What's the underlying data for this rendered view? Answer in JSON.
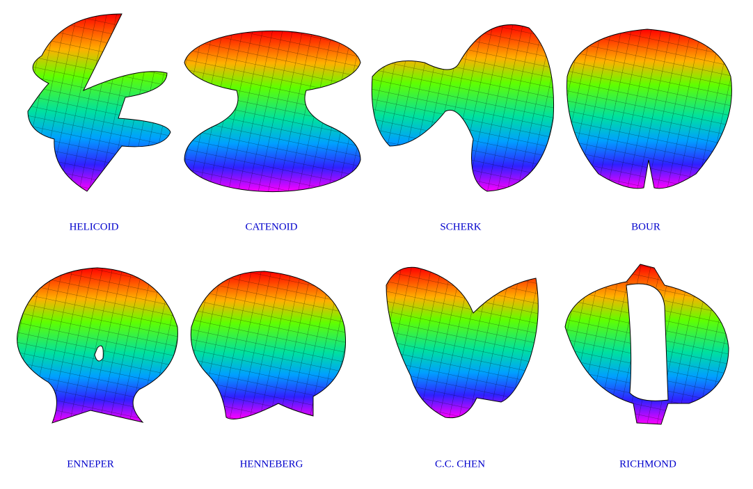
{
  "items": [
    {
      "label": "HELICOID"
    },
    {
      "label": "CATENOID"
    },
    {
      "label": "SCHERK"
    },
    {
      "label": "BOUR"
    },
    {
      "label": "ENNEPER"
    },
    {
      "label": "HENNEBERG"
    },
    {
      "label": "C.C. CHEN"
    },
    {
      "label": "RICHMOND"
    }
  ]
}
